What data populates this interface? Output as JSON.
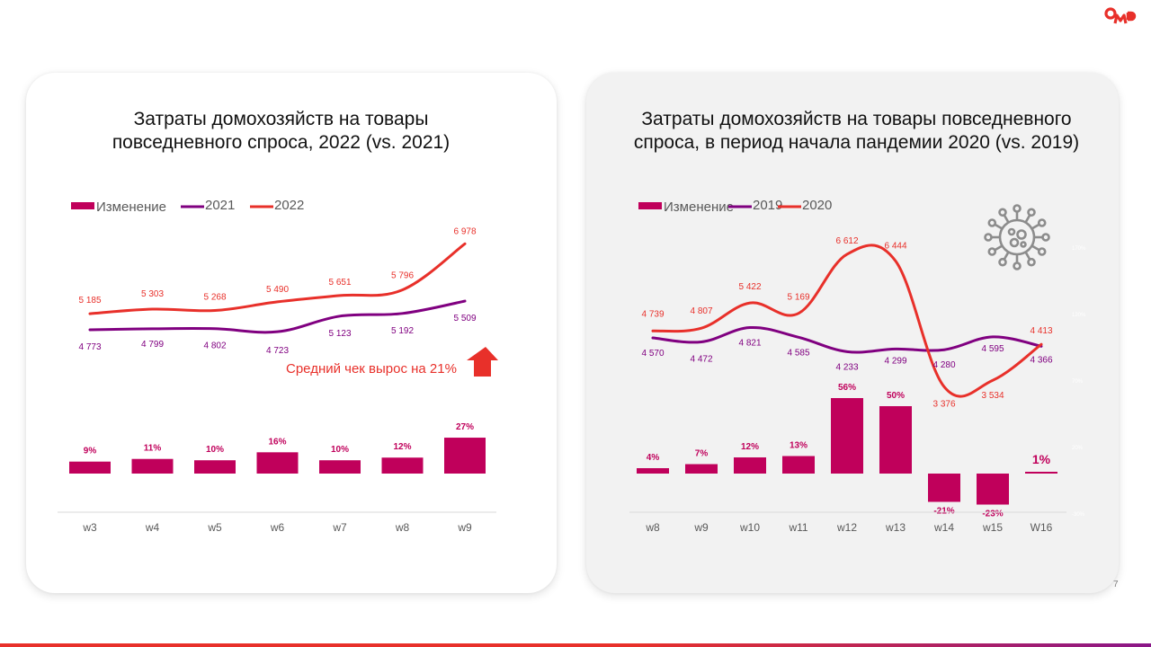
{
  "logo": {
    "text": "OMD",
    "color": "#e8302a"
  },
  "page_number": "7",
  "colors": {
    "bar": "#c0005b",
    "line_prev": "#800080",
    "line_curr": "#e8302a",
    "axis_label": "#595959",
    "faint_axis_label": "#ffffff",
    "panel_right_bg": "#f2f2f2",
    "panel_left_bg": "#ffffff"
  },
  "left": {
    "title_line1": "Затраты домохозяйств на товары",
    "title_line2": "повседневного спроса, 2022 (vs. 2021)",
    "callout": "Средний чек вырос на 21%",
    "callout_icon": "arrow-up-icon"
  },
  "right": {
    "title_line1": "Затраты домохозяйств на товары повседневного",
    "title_line2": "спроса, в период начала пандемии 2020 (vs. 2019)",
    "decor_icon": "virus-icon"
  },
  "chart_data": [
    {
      "type": "bar",
      "title": "Затраты домохозяйств на товары повседневного спроса, 2022 (vs. 2021)",
      "categories": [
        "w3",
        "w4",
        "w5",
        "w6",
        "w7",
        "w8",
        "w9"
      ],
      "legend": [
        "Изменение",
        "2021",
        "2022"
      ],
      "legend_position": "top-left",
      "series": [
        {
          "name": "Изменение",
          "kind": "bar",
          "unit": "%",
          "values": [
            9,
            11,
            10,
            16,
            10,
            12,
            27
          ],
          "labels": [
            "9%",
            "11%",
            "10%",
            "16%",
            "10%",
            "12%",
            "27%"
          ]
        },
        {
          "name": "2021",
          "kind": "line",
          "values": [
            4773,
            4799,
            4802,
            4723,
            5123,
            5192,
            5509
          ],
          "labels": [
            "4 773",
            "4 799",
            "4 802",
            "4 723",
            "5 123",
            "5 192",
            "5 509"
          ]
        },
        {
          "name": "2022",
          "kind": "line",
          "values": [
            5185,
            5303,
            5268,
            5490,
            5651,
            5796,
            6978
          ],
          "labels": [
            "5 185",
            "5 303",
            "5 268",
            "5 490",
            "5 651",
            "5 796",
            "6 978"
          ]
        }
      ],
      "annotation": "Средний чек вырос на 21%",
      "grid": false
    },
    {
      "type": "bar",
      "title": "Затраты домохозяйств на товары повседневного спроса, в период начала пандемии 2020 (vs. 2019)",
      "categories": [
        "w8",
        "w9",
        "w10",
        "w11",
        "w12",
        "w13",
        "w14",
        "w15",
        "W16"
      ],
      "legend": [
        "Изменение",
        "2019",
        "2020"
      ],
      "legend_position": "top-left",
      "secondary_axis_ticks": [
        "170%",
        "120%",
        "70%",
        "20%",
        "-30%"
      ],
      "secondary_ylim": [
        -30,
        170
      ],
      "series": [
        {
          "name": "Изменение",
          "kind": "bar",
          "unit": "%",
          "values": [
            4,
            7,
            12,
            13,
            56,
            50,
            -21,
            -23,
            1
          ],
          "labels": [
            "4%",
            "7%",
            "12%",
            "13%",
            "56%",
            "50%",
            "-21%",
            "-23%",
            "1%"
          ]
        },
        {
          "name": "2019",
          "kind": "line",
          "values": [
            4570,
            4472,
            4821,
            4585,
            4233,
            4299,
            4280,
            4595,
            4366
          ],
          "labels": [
            "4 570",
            "4 472",
            "4 821",
            "4 585",
            "4 233",
            "4 299",
            "4 280",
            "4 595",
            "4 366"
          ]
        },
        {
          "name": "2020",
          "kind": "line",
          "values": [
            4739,
            4807,
            5422,
            5169,
            6612,
            6444,
            3376,
            3534,
            4413
          ],
          "labels": [
            "4 739",
            "4 807",
            "5 422",
            "5 169",
            "6 612",
            "6 444",
            "3 376",
            "3 534",
            "4 413"
          ]
        }
      ],
      "grid": false
    }
  ]
}
